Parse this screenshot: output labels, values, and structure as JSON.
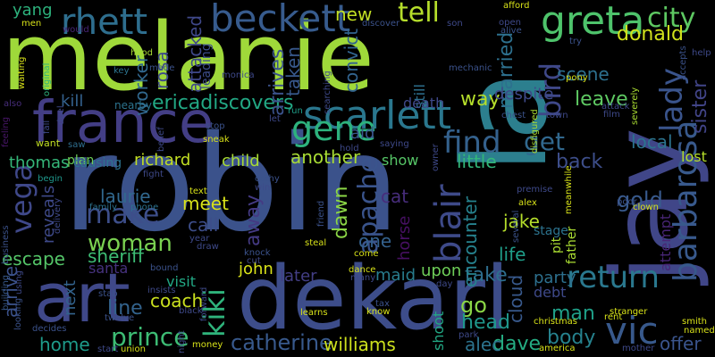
{
  "words": [
    {
      "text": "melanie",
      "color": "#9fd93a"
    },
    {
      "text": "robin",
      "color": "#3b528b"
    },
    {
      "text": "la",
      "color": "#2c7f8e"
    },
    {
      "text": "jay",
      "color": "#404688"
    },
    {
      "text": "dekarl",
      "color": "#3d4d8a"
    },
    {
      "text": "france",
      "color": "#433e85"
    },
    {
      "text": "art",
      "color": "#3f4889"
    },
    {
      "text": "scarlett",
      "color": "#2a778e"
    },
    {
      "text": "greta",
      "color": "#4ec36b"
    },
    {
      "text": "beckett",
      "color": "#375b8d"
    },
    {
      "text": "rhett",
      "color": "#2e6e8e"
    },
    {
      "text": "city",
      "color": "#5ec962"
    },
    {
      "text": "gene",
      "color": "#2db27d"
    },
    {
      "text": "blair",
      "color": "#3e4a89"
    },
    {
      "text": "vic",
      "color": "#38598c"
    },
    {
      "text": "barbarosa",
      "color": "#38598c"
    },
    {
      "text": "lady",
      "color": "#3a548c"
    },
    {
      "text": "bird",
      "color": "#3f4889"
    },
    {
      "text": "find",
      "color": "#34618d"
    },
    {
      "text": "return",
      "color": "#2a788e"
    },
    {
      "text": "kiki",
      "color": "#2fb47c"
    },
    {
      "text": "vega",
      "color": "#3f4889"
    },
    {
      "text": "apache",
      "color": "#3a548c"
    },
    {
      "text": "make",
      "color": "#3d4e8a"
    },
    {
      "text": "donald",
      "color": "#d0e11c"
    },
    {
      "text": "ericadiscovers",
      "color": "#22a884"
    },
    {
      "text": "tell",
      "color": "#b5de2b"
    },
    {
      "text": "get",
      "color": "#31688e"
    },
    {
      "text": "prince",
      "color": "#3dbc74"
    },
    {
      "text": "woman",
      "color": "#7ad151"
    },
    {
      "text": "catherine",
      "color": "#38598c"
    },
    {
      "text": "williams",
      "color": "#cde11d"
    },
    {
      "text": "dave",
      "color": "#25ac82"
    },
    {
      "text": "alec",
      "color": "#2c738e"
    },
    {
      "text": "coach",
      "color": "#cae11f"
    },
    {
      "text": "line",
      "color": "#33638d"
    },
    {
      "text": "take",
      "color": "#2e6e8e"
    },
    {
      "text": "go",
      "color": "#8bd646"
    },
    {
      "text": "head",
      "color": "#1f978b"
    },
    {
      "text": "body",
      "color": "#26828e"
    },
    {
      "text": "man",
      "color": "#1fa088"
    },
    {
      "text": "offer",
      "color": "#3a548c"
    },
    {
      "text": "sister",
      "color": "#414487"
    },
    {
      "text": "worker",
      "color": "#31688e"
    },
    {
      "text": "rosa",
      "color": "#3e4989"
    },
    {
      "text": "attacked",
      "color": "#3f4889"
    },
    {
      "text": "leading",
      "color": "#3d4d8a"
    },
    {
      "text": "taken",
      "color": "#38598c"
    },
    {
      "text": "arrives",
      "color": "#3b528b"
    },
    {
      "text": "convict",
      "color": "#32648e"
    },
    {
      "text": "married",
      "color": "#2d708e"
    },
    {
      "text": "scene",
      "color": "#2d708e"
    },
    {
      "text": "leave",
      "color": "#5ec962"
    },
    {
      "text": "way",
      "color": "#b5de2b"
    },
    {
      "text": "new",
      "color": "#c2df23"
    },
    {
      "text": "yang",
      "color": "#2db27d"
    },
    {
      "text": "kill",
      "color": "#34618d"
    },
    {
      "text": "thomas",
      "color": "#35b779"
    },
    {
      "text": "richard",
      "color": "#c2df23"
    },
    {
      "text": "child",
      "color": "#a8db34"
    },
    {
      "text": "another",
      "color": "#a8db34"
    },
    {
      "text": "show",
      "color": "#56c667"
    },
    {
      "text": "little",
      "color": "#32b67a"
    },
    {
      "text": "back",
      "color": "#3d4e8a"
    },
    {
      "text": "local",
      "color": "#2c738e"
    },
    {
      "text": "lost",
      "color": "#b5de2b"
    },
    {
      "text": "gold",
      "color": "#38598c"
    },
    {
      "text": "laurie",
      "color": "#31688e"
    },
    {
      "text": "meet",
      "color": "#d8e219"
    },
    {
      "text": "call",
      "color": "#3d4e8a"
    },
    {
      "text": "dawn",
      "color": "#8bd646"
    },
    {
      "text": "away",
      "color": "#443a83"
    },
    {
      "text": "one",
      "color": "#34618d"
    },
    {
      "text": "horse",
      "color": "#471063"
    },
    {
      "text": "encounter",
      "color": "#26828e"
    },
    {
      "text": "jake",
      "color": "#b5de2b"
    },
    {
      "text": "stage",
      "color": "#2c738e"
    },
    {
      "text": "life",
      "color": "#1f9e89"
    },
    {
      "text": "cloud",
      "color": "#38598c"
    },
    {
      "text": "upon",
      "color": "#6ece58"
    },
    {
      "text": "party",
      "color": "#2d708e"
    },
    {
      "text": "debt",
      "color": "#3e4989"
    },
    {
      "text": "escape",
      "color": "#54c568"
    },
    {
      "text": "sheriff",
      "color": "#3dbc74"
    },
    {
      "text": "santa",
      "color": "#46327e"
    },
    {
      "text": "john",
      "color": "#d8e219"
    },
    {
      "text": "later",
      "color": "#433e85"
    },
    {
      "text": "maid",
      "color": "#287d8e"
    },
    {
      "text": "visit",
      "color": "#22a884"
    },
    {
      "text": "arrive",
      "color": "#3b528b"
    },
    {
      "text": "next",
      "color": "#33638d"
    },
    {
      "text": "home",
      "color": "#1e9b8a"
    },
    {
      "text": "reveals",
      "color": "#3e4989"
    },
    {
      "text": "shoot",
      "color": "#22a884"
    },
    {
      "text": "cat",
      "color": "#472d7b"
    },
    {
      "text": "attempt",
      "color": "#482576"
    },
    {
      "text": "pit",
      "color": "#aadc32"
    },
    {
      "text": "father",
      "color": "#aadc32"
    },
    {
      "text": "aid",
      "color": "#39568c"
    },
    {
      "text": "still",
      "color": "#2d708e"
    },
    {
      "text": "despite",
      "color": "#3e4989"
    },
    {
      "text": "death",
      "color": "#3f4889"
    },
    {
      "text": "men",
      "color": "#d8e219"
    },
    {
      "text": "duel",
      "color": "#3e4989"
    },
    {
      "text": "also",
      "color": "#472d7b"
    },
    {
      "text": "original",
      "color": "#2db27d"
    },
    {
      "text": "waiting",
      "color": "#d8e219"
    },
    {
      "text": "looking",
      "color": "#3b528b"
    },
    {
      "text": "feeling",
      "color": "#481668"
    },
    {
      "text": "want",
      "color": "#c2df23"
    },
    {
      "text": "saw",
      "color": "#2e6e8e"
    },
    {
      "text": "fall",
      "color": "#3e4989"
    },
    {
      "text": "begin",
      "color": "#1f978b"
    },
    {
      "text": "business",
      "color": "#3b528b"
    },
    {
      "text": "building",
      "color": "#38598c"
    },
    {
      "text": "delivery",
      "color": "#3e4989"
    },
    {
      "text": "family",
      "color": "#2c728e"
    },
    {
      "text": "phone",
      "color": "#2c728e"
    },
    {
      "text": "plan",
      "color": "#6ece58"
    },
    {
      "text": "causing",
      "color": "#2c728e"
    },
    {
      "text": "would",
      "color": "#482576"
    },
    {
      "text": "hood",
      "color": "#a8db34"
    },
    {
      "text": "made",
      "color": "#3b528b"
    },
    {
      "text": "key",
      "color": "#2c738e"
    },
    {
      "text": "nearby",
      "color": "#2c738e"
    },
    {
      "text": "monica",
      "color": "#3e4989"
    },
    {
      "text": "discover",
      "color": "#3b528b"
    },
    {
      "text": "son",
      "color": "#3e4989"
    },
    {
      "text": "alive",
      "color": "#3b528b"
    },
    {
      "text": "open",
      "color": "#3e4989"
    },
    {
      "text": "afford",
      "color": "#d8e219"
    },
    {
      "text": "try",
      "color": "#3b528b"
    },
    {
      "text": "mechanic",
      "color": "#3b528b"
    },
    {
      "text": "pony",
      "color": "#d8e219"
    },
    {
      "text": "accepts",
      "color": "#3b528b"
    },
    {
      "text": "help",
      "color": "#3e4989"
    },
    {
      "text": "attack",
      "color": "#3e4989"
    },
    {
      "text": "film",
      "color": "#3e4989"
    },
    {
      "text": "severely",
      "color": "#aadc32"
    },
    {
      "text": "chest",
      "color": "#3b528b"
    },
    {
      "text": "town",
      "color": "#3e4989"
    },
    {
      "text": "run",
      "color": "#1f9e89"
    },
    {
      "text": "let",
      "color": "#3e4989"
    },
    {
      "text": "searching",
      "color": "#3e4989"
    },
    {
      "text": "hold",
      "color": "#3e4989"
    },
    {
      "text": "saying",
      "color": "#3e4989"
    },
    {
      "text": "disfigured",
      "color": "#aadc32"
    },
    {
      "text": "belief",
      "color": "#3e4989"
    },
    {
      "text": "stop",
      "color": "#3b528b"
    },
    {
      "text": "sneak",
      "color": "#d8e219"
    },
    {
      "text": "fight",
      "color": "#3e4989"
    },
    {
      "text": "cathy",
      "color": "#3b528b"
    },
    {
      "text": "win",
      "color": "#3e4989"
    },
    {
      "text": "text",
      "color": "#d8e219"
    },
    {
      "text": "friend",
      "color": "#3b528b"
    },
    {
      "text": "owner",
      "color": "#3e4989"
    },
    {
      "text": "premise",
      "color": "#3e4989"
    },
    {
      "text": "meanwhile",
      "color": "#d8e219"
    },
    {
      "text": "alex",
      "color": "#d8e219"
    },
    {
      "text": "poor",
      "color": "#3b528b"
    },
    {
      "text": "clown",
      "color": "#d8e219"
    },
    {
      "text": "several",
      "color": "#3b528b"
    },
    {
      "text": "year",
      "color": "#3e4989"
    },
    {
      "text": "draw",
      "color": "#3e4989"
    },
    {
      "text": "steal",
      "color": "#d8e219"
    },
    {
      "text": "knock",
      "color": "#3b528b"
    },
    {
      "text": "cut",
      "color": "#3e4989"
    },
    {
      "text": "bound",
      "color": "#3b528b"
    },
    {
      "text": "stab",
      "color": "#3b528b"
    },
    {
      "text": "insists",
      "color": "#3e4989"
    },
    {
      "text": "black",
      "color": "#3e4989"
    },
    {
      "text": "twelve",
      "color": "#3b528b"
    },
    {
      "text": "union",
      "color": "#d8e219"
    },
    {
      "text": "start",
      "color": "#3e4989"
    },
    {
      "text": "decides",
      "color": "#3b528b"
    },
    {
      "text": "using",
      "color": "#3e4989"
    },
    {
      "text": "come",
      "color": "#d8e219"
    },
    {
      "text": "dance",
      "color": "#d8e219"
    },
    {
      "text": "many",
      "color": "#3e4989"
    },
    {
      "text": "tax",
      "color": "#3b528b"
    },
    {
      "text": "know",
      "color": "#d8e219"
    },
    {
      "text": "day",
      "color": "#3e4989"
    },
    {
      "text": "learns",
      "color": "#d8e219"
    },
    {
      "text": "park",
      "color": "#3e4989"
    },
    {
      "text": "america",
      "color": "#d8e219"
    },
    {
      "text": "christmas",
      "color": "#d8e219"
    },
    {
      "text": "stranger",
      "color": "#d8e219"
    },
    {
      "text": "rent",
      "color": "#d8e219"
    },
    {
      "text": "smith",
      "color": "#d8e219"
    },
    {
      "text": "named",
      "color": "#d8e219"
    },
    {
      "text": "mother",
      "color": "#3e4989"
    },
    {
      "text": "money",
      "color": "#d8e219"
    },
    {
      "text": "night",
      "color": "#3e4989"
    },
    {
      "text": "forward",
      "color": "#3e4989"
    }
  ]
}
